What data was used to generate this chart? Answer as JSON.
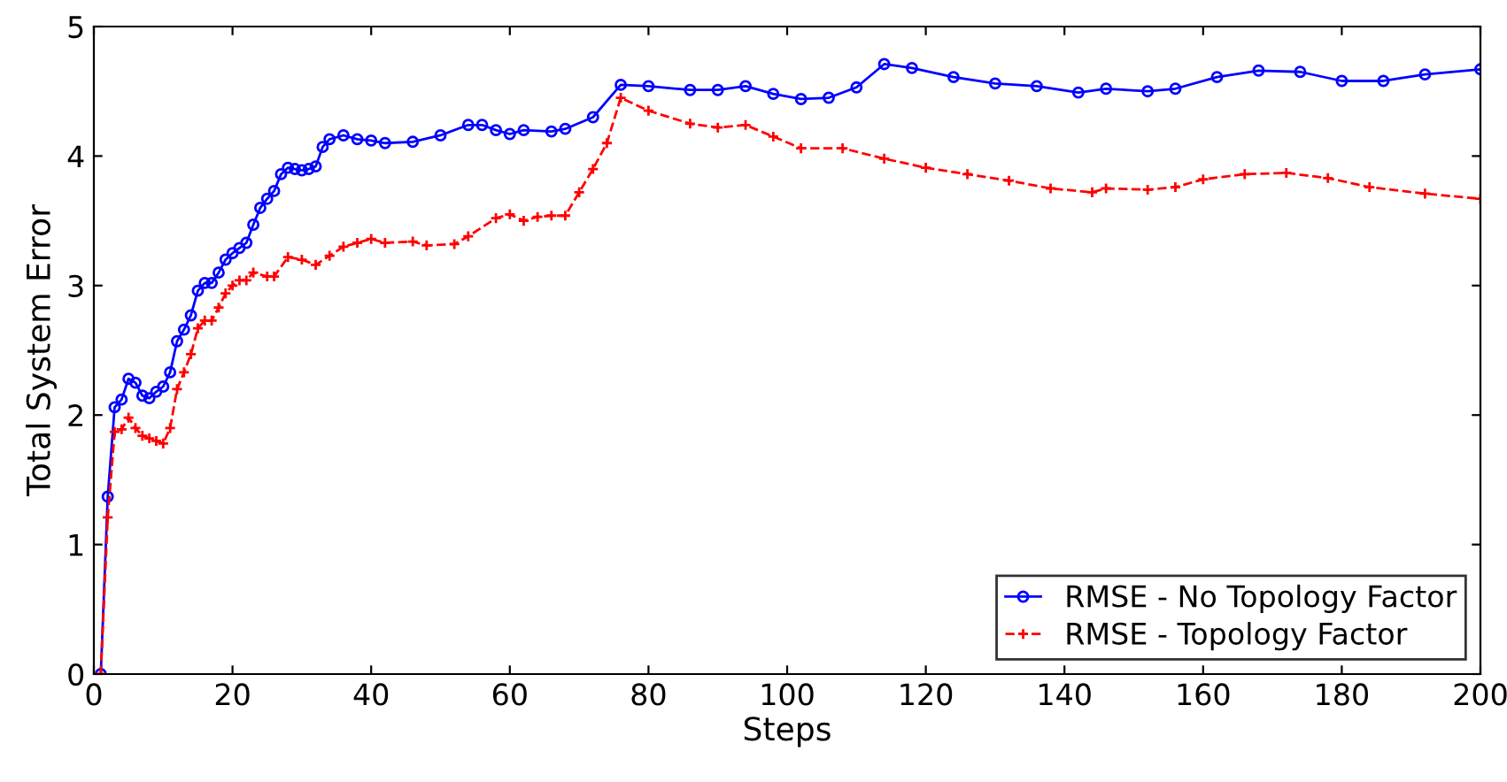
{
  "chart_data": {
    "type": "line",
    "xlabel": "Steps",
    "ylabel": "Total System Error",
    "xlim": [
      0,
      200
    ],
    "xticks": [
      0,
      20,
      40,
      60,
      80,
      100,
      120,
      140,
      160,
      180,
      200
    ],
    "ylim": [
      0,
      5
    ],
    "yticks": [
      0,
      1,
      2,
      3,
      4,
      5
    ],
    "grid": false,
    "legend": "bottom right",
    "series": [
      {
        "name": "RMSE - No Topology Factor",
        "color": "#0000ff",
        "marker": "circle",
        "line_style": "solid",
        "x": [
          1,
          2,
          3,
          4,
          5,
          6,
          7,
          8,
          9,
          10,
          11,
          12,
          13,
          14,
          15,
          16,
          17,
          18,
          19,
          20,
          21,
          22,
          23,
          24,
          25,
          26,
          27,
          28,
          29,
          30,
          31,
          32,
          33,
          34,
          36,
          38,
          40,
          42,
          46,
          50,
          54,
          56,
          58,
          60,
          62,
          66,
          68,
          72,
          76,
          80,
          86,
          90,
          94,
          98,
          102,
          106,
          110,
          114,
          118,
          124,
          130,
          136,
          142,
          146,
          152,
          156,
          162,
          168,
          174,
          180,
          186,
          192,
          200
        ],
        "values": [
          0,
          1.37,
          2.06,
          2.12,
          2.28,
          2.25,
          2.15,
          2.13,
          2.18,
          2.22,
          2.33,
          2.57,
          2.66,
          2.77,
          2.96,
          3.02,
          3.02,
          3.1,
          3.2,
          3.25,
          3.29,
          3.33,
          3.47,
          3.6,
          3.67,
          3.73,
          3.86,
          3.91,
          3.9,
          3.89,
          3.9,
          3.92,
          4.07,
          4.13,
          4.16,
          4.13,
          4.12,
          4.1,
          4.11,
          4.16,
          4.24,
          4.24,
          4.2,
          4.17,
          4.2,
          4.19,
          4.21,
          4.3,
          4.55,
          4.54,
          4.51,
          4.51,
          4.54,
          4.48,
          4.44,
          4.45,
          4.53,
          4.71,
          4.68,
          4.61,
          4.56,
          4.54,
          4.49,
          4.52,
          4.5,
          4.52,
          4.61,
          4.66,
          4.65,
          4.58,
          4.58,
          4.63,
          4.67
        ]
      },
      {
        "name": "RMSE - Topology Factor",
        "color": "#ff0000",
        "marker": "cross",
        "line_style": "dashed",
        "x": [
          1,
          2,
          3,
          4,
          5,
          6,
          7,
          8,
          9,
          10,
          11,
          12,
          13,
          14,
          15,
          16,
          17,
          18,
          19,
          20,
          21,
          22,
          23,
          25,
          26,
          28,
          30,
          32,
          34,
          36,
          38,
          40,
          42,
          46,
          48,
          52,
          54,
          58,
          60,
          62,
          64,
          66,
          68,
          70,
          72,
          74,
          76,
          80,
          86,
          90,
          94,
          98,
          102,
          108,
          114,
          120,
          126,
          132,
          138,
          144,
          146,
          152,
          156,
          160,
          166,
          172,
          178,
          184,
          192,
          200
        ],
        "values": [
          0,
          1.21,
          1.87,
          1.89,
          1.98,
          1.9,
          1.84,
          1.82,
          1.8,
          1.78,
          1.9,
          2.2,
          2.33,
          2.47,
          2.67,
          2.73,
          2.73,
          2.83,
          2.94,
          3.0,
          3.04,
          3.04,
          3.1,
          3.07,
          3.07,
          3.22,
          3.2,
          3.16,
          3.23,
          3.3,
          3.33,
          3.36,
          3.33,
          3.34,
          3.31,
          3.32,
          3.38,
          3.52,
          3.55,
          3.5,
          3.53,
          3.54,
          3.54,
          3.72,
          3.9,
          4.1,
          4.45,
          4.35,
          4.25,
          4.22,
          4.24,
          4.15,
          4.06,
          4.06,
          3.98,
          3.91,
          3.86,
          3.81,
          3.75,
          3.72,
          3.75,
          3.74,
          3.76,
          3.82,
          3.86,
          3.87,
          3.83,
          3.76,
          3.71,
          3.67
        ]
      }
    ]
  }
}
